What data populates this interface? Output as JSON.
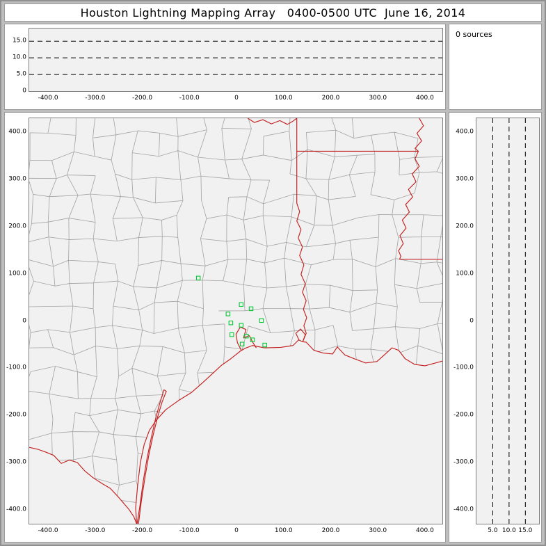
{
  "title": "Houston Lightning Mapping Array   0400-0500 UTC  June 16, 2014",
  "sources_panel": {
    "label": "0 sources"
  },
  "colors": {
    "window_bg": "#bdbdbd",
    "panel_bg": "#ffffff",
    "plot_bg": "#f1f1f1",
    "dash_line": "#000000",
    "county_line": "#a3a3a3",
    "state_border": "#c41f1f",
    "station": "#00c832",
    "text": "#000000"
  },
  "axes": {
    "ew_ticks": [
      {
        "label": "-400.0",
        "value": -400
      },
      {
        "label": "-300.0",
        "value": -300
      },
      {
        "label": "-200.0",
        "value": -200
      },
      {
        "label": "-100.0",
        "value": -100
      },
      {
        "label": "0",
        "value": 0
      },
      {
        "label": "100.0",
        "value": 100
      },
      {
        "label": "200.0",
        "value": 200
      },
      {
        "label": "300.0",
        "value": 300
      },
      {
        "label": "400.0",
        "value": 400
      }
    ],
    "ns_ticks": [
      {
        "label": "400.0",
        "value": 400
      },
      {
        "label": "300.0",
        "value": 300
      },
      {
        "label": "200.0",
        "value": 200
      },
      {
        "label": "100.0",
        "value": 100
      },
      {
        "label": "0",
        "value": 0
      },
      {
        "label": "-100.0",
        "value": -100
      },
      {
        "label": "-200.0",
        "value": -200
      },
      {
        "label": "-300.0",
        "value": -300
      },
      {
        "label": "-400.0",
        "value": -400
      }
    ],
    "alt_ticks_top": [
      {
        "label": "15.0",
        "value": 15
      },
      {
        "label": "10.0",
        "value": 10
      },
      {
        "label": "5.0",
        "value": 5
      },
      {
        "label": "0",
        "value": 0
      }
    ],
    "alt_ticks_right": [
      {
        "label": "5.0",
        "value": 5
      },
      {
        "label": "10.0",
        "value": 10
      },
      {
        "label": "15.0",
        "value": 15
      }
    ],
    "alt_dash_km": [
      5,
      10,
      15
    ]
  },
  "chart_data": [
    {
      "id": "altitude-vs-east-west",
      "type": "scatter",
      "position": "top",
      "x_axis": {
        "range_km": [
          -440,
          437
        ],
        "tick_values": [
          -400,
          -300,
          -200,
          -100,
          0,
          100,
          200,
          300,
          400
        ]
      },
      "y_axis": {
        "range_km": [
          0,
          18.8
        ],
        "tick_values": [
          15,
          10,
          5,
          0
        ],
        "dashed_gridlines_km": [
          5,
          10,
          15
        ]
      },
      "series": [
        {
          "name": "lightning-sources",
          "points": []
        }
      ],
      "annotation": "0 sources"
    },
    {
      "id": "plan-view",
      "type": "scatter",
      "position": "main",
      "x_axis": {
        "range_km": [
          -440,
          437
        ],
        "tick_values": [
          -400,
          -300,
          -200,
          -100,
          0,
          100,
          200,
          300,
          400
        ]
      },
      "y_axis": {
        "range_km": [
          -430,
          430
        ],
        "tick_values": [
          400,
          300,
          200,
          100,
          0,
          -100,
          -200,
          -300,
          -400
        ]
      },
      "basemap": "Texas-Louisiana county and state boundaries, state borders and coastline in red",
      "series": [
        {
          "name": "lma-stations",
          "marker": "open-square",
          "color": "#00c832",
          "points": [
            [
              -81,
              91
            ],
            [
              10,
              35
            ],
            [
              -18,
              15
            ],
            [
              31,
              26
            ],
            [
              -12,
              -4
            ],
            [
              10,
              -9
            ],
            [
              53,
              1
            ],
            [
              -10,
              -29
            ],
            [
              21,
              -32
            ],
            [
              34,
              -40
            ],
            [
              12,
              -49
            ],
            [
              60,
              -51
            ]
          ]
        },
        {
          "name": "lightning-sources",
          "points": []
        }
      ]
    },
    {
      "id": "altitude-vs-north-south",
      "type": "scatter",
      "position": "right",
      "x_axis": {
        "range_km": [
          0,
          19.2
        ],
        "tick_values": [
          5,
          10,
          15
        ],
        "dashed_gridlines_km": [
          5,
          10,
          15
        ]
      },
      "y_axis": {
        "range_km": [
          -430,
          430
        ],
        "tick_values": [
          400,
          300,
          200,
          100,
          0,
          -100,
          -200,
          -300,
          -400
        ]
      },
      "series": [
        {
          "name": "lightning-sources",
          "points": []
        }
      ]
    }
  ],
  "map": {
    "county_grid": {
      "cell": 46,
      "jitter": 12,
      "seed": 17,
      "dropout": 0.12
    },
    "land_polygon": [
      [
        -440,
        430
      ],
      [
        437,
        430
      ],
      [
        437,
        -85
      ],
      [
        400,
        -95
      ],
      [
        378,
        -92
      ],
      [
        358,
        -80
      ],
      [
        344,
        -62
      ],
      [
        330,
        -57
      ],
      [
        316,
        -70
      ],
      [
        298,
        -86
      ],
      [
        274,
        -89
      ],
      [
        250,
        -80
      ],
      [
        230,
        -72
      ],
      [
        214,
        -55
      ],
      [
        204,
        -70
      ],
      [
        184,
        -68
      ],
      [
        164,
        -62
      ],
      [
        148,
        -45
      ],
      [
        140,
        -44
      ],
      [
        132,
        -40
      ],
      [
        120,
        -52
      ],
      [
        94,
        -56
      ],
      [
        60,
        -57
      ],
      [
        34,
        -52
      ],
      [
        18,
        -58
      ],
      [
        8,
        -64
      ],
      [
        -12,
        -80
      ],
      [
        -32,
        -94
      ],
      [
        -46,
        -107
      ],
      [
        -72,
        -131
      ],
      [
        -96,
        -152
      ],
      [
        -122,
        -168
      ],
      [
        -150,
        -188
      ],
      [
        -170,
        -210
      ],
      [
        -185,
        -232
      ],
      [
        -196,
        -262
      ],
      [
        -204,
        -300
      ],
      [
        -210,
        -350
      ],
      [
        -214,
        -396
      ],
      [
        -212,
        -430
      ],
      [
        -218,
        -415
      ],
      [
        -228,
        -400
      ],
      [
        -240,
        -386
      ],
      [
        -252,
        -372
      ],
      [
        -268,
        -355
      ],
      [
        -285,
        -345
      ],
      [
        -305,
        -332
      ],
      [
        -322,
        -318
      ],
      [
        -338,
        -300
      ],
      [
        -355,
        -295
      ],
      [
        -372,
        -302
      ],
      [
        -388,
        -285
      ],
      [
        -405,
        -278
      ],
      [
        -422,
        -272
      ],
      [
        -440,
        -268
      ]
    ],
    "state_borders": [
      {
        "name": "rio-grande",
        "points": [
          [
            -440,
            -268
          ],
          [
            -422,
            -272
          ],
          [
            -405,
            -278
          ],
          [
            -388,
            -285
          ],
          [
            -372,
            -302
          ],
          [
            -355,
            -295
          ],
          [
            -338,
            -300
          ],
          [
            -322,
            -318
          ],
          [
            -305,
            -332
          ],
          [
            -285,
            -345
          ],
          [
            -268,
            -355
          ],
          [
            -252,
            -372
          ],
          [
            -240,
            -386
          ],
          [
            -228,
            -400
          ],
          [
            -218,
            -415
          ],
          [
            -212,
            -430
          ]
        ]
      },
      {
        "name": "gulf-coastline",
        "points": [
          [
            -212,
            -430
          ],
          [
            -214,
            -396
          ],
          [
            -210,
            -350
          ],
          [
            -204,
            -300
          ],
          [
            -196,
            -262
          ],
          [
            -185,
            -232
          ],
          [
            -170,
            -210
          ],
          [
            -150,
            -188
          ],
          [
            -122,
            -168
          ],
          [
            -96,
            -152
          ],
          [
            -72,
            -131
          ],
          [
            -46,
            -107
          ],
          [
            -32,
            -94
          ],
          [
            -12,
            -80
          ],
          [
            8,
            -64
          ],
          [
            18,
            -58
          ],
          [
            34,
            -52
          ],
          [
            60,
            -57
          ],
          [
            94,
            -56
          ],
          [
            120,
            -52
          ],
          [
            132,
            -40
          ],
          [
            140,
            -44
          ],
          [
            148,
            -45
          ],
          [
            164,
            -62
          ],
          [
            184,
            -68
          ],
          [
            204,
            -70
          ],
          [
            214,
            -55
          ],
          [
            230,
            -72
          ],
          [
            250,
            -80
          ],
          [
            274,
            -89
          ],
          [
            298,
            -86
          ],
          [
            316,
            -70
          ],
          [
            330,
            -57
          ],
          [
            344,
            -62
          ],
          [
            358,
            -80
          ],
          [
            378,
            -92
          ],
          [
            400,
            -95
          ],
          [
            437,
            -85
          ]
        ]
      },
      {
        "name": "padre-island",
        "points": [
          [
            -208,
            -430
          ],
          [
            -202,
            -382
          ],
          [
            -194,
            -330
          ],
          [
            -186,
            -284
          ],
          [
            -177,
            -242
          ],
          [
            -167,
            -202
          ],
          [
            -158,
            -172
          ],
          [
            -149,
            -149
          ],
          [
            -154,
            -146
          ],
          [
            -163,
            -175
          ],
          [
            -172,
            -208
          ],
          [
            -181,
            -248
          ],
          [
            -190,
            -292
          ],
          [
            -198,
            -340
          ],
          [
            -205,
            -392
          ],
          [
            -211,
            -430
          ]
        ]
      },
      {
        "name": "galveston-bay",
        "points": [
          [
            10,
            -62
          ],
          [
            2,
            -46
          ],
          [
            -1,
            -28
          ],
          [
            8,
            -13
          ],
          [
            20,
            -18
          ],
          [
            15,
            -36
          ],
          [
            27,
            -31
          ],
          [
            35,
            -46
          ],
          [
            42,
            -57
          ]
        ]
      },
      {
        "name": "sabine-lake",
        "points": [
          [
            133,
            -41
          ],
          [
            126,
            -26
          ],
          [
            136,
            -17
          ],
          [
            146,
            -29
          ],
          [
            141,
            -43
          ]
        ]
      },
      {
        "name": "red-river",
        "points": [
          [
            24,
            430
          ],
          [
            38,
            421
          ],
          [
            56,
            427
          ],
          [
            74,
            418
          ],
          [
            92,
            425
          ],
          [
            108,
            417
          ],
          [
            120,
            424
          ],
          [
            128,
            430
          ]
        ]
      },
      {
        "name": "texas-arkansas",
        "points": [
          [
            128,
            430
          ],
          [
            128,
            360
          ]
        ]
      },
      {
        "name": "arkansas-louisiana",
        "points": [
          [
            128,
            360
          ],
          [
            386,
            360
          ]
        ]
      },
      {
        "name": "texas-louisiana-sabine",
        "points": [
          [
            128,
            360
          ],
          [
            128,
            250
          ],
          [
            134,
            232
          ],
          [
            128,
            212
          ],
          [
            137,
            194
          ],
          [
            131,
            176
          ],
          [
            140,
            157
          ],
          [
            134,
            139
          ],
          [
            143,
            119
          ],
          [
            137,
            99
          ],
          [
            146,
            79
          ],
          [
            140,
            61
          ],
          [
            148,
            43
          ],
          [
            142,
            25
          ],
          [
            149,
            7
          ],
          [
            143,
            -10
          ],
          [
            148,
            -26
          ],
          [
            141,
            -43
          ]
        ]
      },
      {
        "name": "mississippi-river",
        "points": [
          [
            388,
            430
          ],
          [
            397,
            414
          ],
          [
            383,
            398
          ],
          [
            393,
            382
          ],
          [
            379,
            366
          ],
          [
            386,
            360
          ],
          [
            379,
            344
          ],
          [
            388,
            328
          ],
          [
            373,
            312
          ],
          [
            381,
            295
          ],
          [
            365,
            279
          ],
          [
            374,
            263
          ],
          [
            359,
            247
          ],
          [
            367,
            231
          ],
          [
            352,
            214
          ],
          [
            360,
            197
          ],
          [
            347,
            181
          ],
          [
            354,
            164
          ],
          [
            344,
            149
          ],
          [
            349,
            137
          ],
          [
            346,
            131
          ]
        ]
      },
      {
        "name": "louisiana-mississippi-31n",
        "points": [
          [
            346,
            131
          ],
          [
            437,
            131
          ]
        ]
      }
    ]
  }
}
